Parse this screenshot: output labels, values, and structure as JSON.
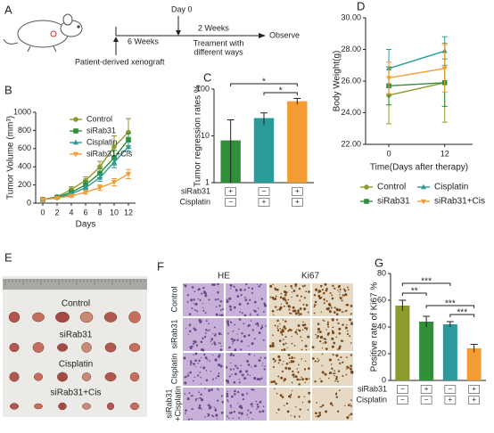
{
  "panel_a": {
    "label": "A",
    "day0": "Day 0",
    "weeks6": "6 Weeks",
    "weeks2": "2 Weeks",
    "treatment": [
      "Treament with",
      "different ways"
    ],
    "observe": "Observe",
    "xenograft": "Patient-derived xenograft"
  },
  "panel_e": {
    "label": "E",
    "groups": [
      "Control",
      "siRab31",
      "Cisplatin",
      "siRab31+Cis"
    ]
  },
  "panel_f": {
    "label": "F",
    "columns": [
      "HE",
      "Ki67"
    ],
    "rows": [
      [
        "Control"
      ],
      [
        "siRab31"
      ],
      [
        "Cisplatin"
      ],
      [
        "siRab31",
        "+Cisplatin"
      ]
    ]
  },
  "chart_data": [
    {
      "type": "line",
      "panel": "B",
      "ylabel": "Tumor Volume (mm³)",
      "xlabel": "Days",
      "x": [
        0,
        2,
        4,
        6,
        8,
        10,
        12
      ],
      "xlim": [
        -1,
        13
      ],
      "xticks": [
        0,
        2,
        4,
        6,
        8,
        10,
        12
      ],
      "ylim": [
        0,
        1000
      ],
      "yticks": [
        0,
        200,
        400,
        600,
        800,
        1000
      ],
      "legend": "upper left",
      "series": [
        {
          "name": "Control",
          "color": "#8c9a2e",
          "marker": "circle",
          "values": [
            40,
            70,
            150,
            250,
            400,
            620,
            780
          ],
          "errors": [
            10,
            10,
            30,
            40,
            60,
            120,
            150
          ]
        },
        {
          "name": "siRab31",
          "color": "#2f8f3a",
          "marker": "square",
          "values": [
            40,
            65,
            120,
            200,
            330,
            500,
            700
          ],
          "errors": [
            10,
            10,
            25,
            40,
            50,
            80,
            70
          ]
        },
        {
          "name": "Cisplatin",
          "color": "#2a9a9a",
          "marker": "triangle-up",
          "values": [
            40,
            60,
            100,
            170,
            280,
            450,
            620
          ],
          "errors": [
            10,
            10,
            20,
            30,
            40,
            60,
            50
          ]
        },
        {
          "name": "siRab31+Cis",
          "color": "#f39c34",
          "marker": "triangle-down",
          "values": [
            40,
            55,
            80,
            120,
            170,
            230,
            320
          ],
          "errors": [
            10,
            10,
            15,
            20,
            30,
            40,
            50
          ]
        }
      ]
    },
    {
      "type": "bar",
      "panel": "C",
      "ylabel": "Tumor regression rates %",
      "categories": [
        null,
        null,
        null
      ],
      "values": [
        8,
        24,
        55
      ],
      "errors": [
        14,
        7,
        8
      ],
      "colors": [
        "#2f8f3a",
        "#2a9a9a",
        "#f39c34"
      ],
      "log_scale": true,
      "ylim": [
        1,
        100
      ],
      "yticks": [
        1,
        10,
        100
      ],
      "annotations": [
        "*",
        "*"
      ],
      "treatments": [
        {
          "name": "siRab31",
          "signs": [
            "+",
            "−",
            "+"
          ]
        },
        {
          "name": "Cisplatin",
          "signs": [
            "−",
            "+",
            "+"
          ]
        }
      ]
    },
    {
      "type": "line",
      "panel": "D",
      "ylabel": "Body Weight(g)",
      "xlabel": "Time(Days after therapy)",
      "x": [
        0,
        12
      ],
      "xlim": [
        -5,
        18
      ],
      "xticks": [
        0,
        12
      ],
      "ylim": [
        22,
        30
      ],
      "yticks": [
        {
          "value": 22,
          "label": "22.00"
        },
        {
          "value": 24,
          "label": "24.00"
        },
        {
          "value": 26,
          "label": "26.00"
        },
        {
          "value": 28,
          "label": "28.00"
        },
        {
          "value": 30,
          "label": "30.00"
        }
      ],
      "legend": "below",
      "series": [
        {
          "name": "Control",
          "color": "#8c9a2e",
          "marker": "circle",
          "values": [
            25.1,
            25.9
          ],
          "errors": [
            1.8,
            2.5
          ]
        },
        {
          "name": "siRab31",
          "color": "#2f8f3a",
          "marker": "square",
          "values": [
            25.7,
            25.9
          ],
          "errors": [
            1.2,
            1.5
          ]
        },
        {
          "name": "Cisplatin",
          "color": "#2a9a9a",
          "marker": "triangle-up",
          "values": [
            26.8,
            27.9
          ],
          "errors": [
            1.2,
            0.9
          ]
        },
        {
          "name": "siRab31+Cis",
          "color": "#f39c34",
          "marker": "triangle-down",
          "values": [
            26.2,
            26.8
          ],
          "errors": [
            1.0,
            1.5
          ]
        }
      ]
    },
    {
      "type": "bar",
      "panel": "G",
      "ylabel": "Positive rate of  Ki67 %",
      "categories": [
        null,
        null,
        null,
        null
      ],
      "values": [
        56,
        44,
        42,
        24
      ],
      "errors": [
        4,
        4,
        2,
        3
      ],
      "colors": [
        "#8c9a2e",
        "#2f8f3a",
        "#2a9a9a",
        "#f39c34"
      ],
      "ylim": [
        0,
        80
      ],
      "yticks": [
        0,
        20,
        40,
        60,
        80
      ],
      "annotations": [
        "***",
        "**",
        "***",
        "***"
      ],
      "treatments": [
        {
          "name": "siRab31",
          "signs": [
            "−",
            "+",
            "−",
            "+"
          ]
        },
        {
          "name": "Cisplatin",
          "signs": [
            "−",
            "−",
            "+",
            "+"
          ]
        }
      ]
    }
  ]
}
